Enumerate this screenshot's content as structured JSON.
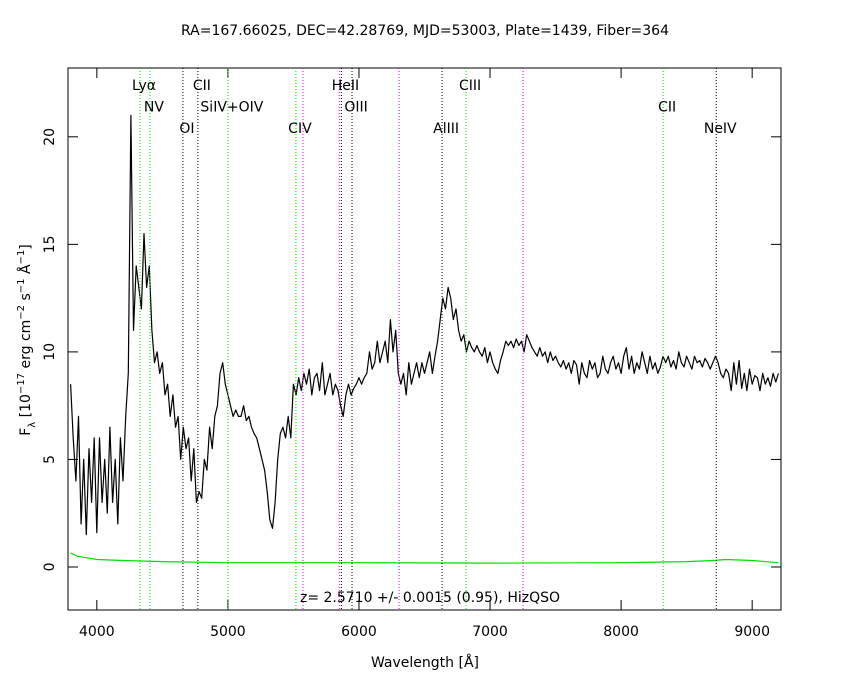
{
  "chart_data": {
    "type": "line",
    "title": "RA=167.66025, DEC=42.28769, MJD=53003, Plate=1439, Fiber=364",
    "xlabel": "Wavelength [Å]",
    "ylabel": [
      "F",
      "λ",
      " [10",
      "−17",
      " erg cm",
      "−2",
      " s",
      "−1",
      " Å",
      "−1",
      "]"
    ],
    "annotation": "z= 2.5710 +/- 0.0015 (0.95), HizQSO",
    "xlim": [
      3780,
      9220
    ],
    "ylim": [
      -2,
      23.2
    ],
    "xticks": [
      4000,
      5000,
      6000,
      7000,
      8000,
      9000
    ],
    "yticks": [
      0,
      5,
      10,
      15,
      20
    ],
    "series": [
      {
        "color": "#000000",
        "x": [
          3800,
          3820,
          3840,
          3860,
          3880,
          3900,
          3920,
          3940,
          3960,
          3980,
          4000,
          4020,
          4040,
          4060,
          4080,
          4100,
          4120,
          4140,
          4160,
          4180,
          4200,
          4220,
          4240,
          4260,
          4280,
          4300,
          4320,
          4340,
          4360,
          4380,
          4400,
          4420,
          4440,
          4460,
          4480,
          4500,
          4520,
          4540,
          4560,
          4580,
          4600,
          4620,
          4640,
          4660,
          4680,
          4700,
          4720,
          4740,
          4760,
          4780,
          4800,
          4820,
          4840,
          4860,
          4880,
          4900,
          4920,
          4940,
          4960,
          4980,
          5000,
          5020,
          5040,
          5060,
          5080,
          5100,
          5120,
          5140,
          5160,
          5180,
          5200,
          5220,
          5240,
          5260,
          5280,
          5300,
          5320,
          5340,
          5360,
          5380,
          5400,
          5420,
          5440,
          5460,
          5480,
          5500,
          5520,
          5540,
          5560,
          5580,
          5600,
          5620,
          5640,
          5660,
          5680,
          5700,
          5720,
          5740,
          5760,
          5780,
          5800,
          5820,
          5840,
          5860,
          5880,
          5900,
          5920,
          5940,
          5960,
          5980,
          6000,
          6020,
          6040,
          6060,
          6080,
          6100,
          6120,
          6140,
          6160,
          6180,
          6200,
          6220,
          6240,
          6260,
          6280,
          6300,
          6320,
          6340,
          6360,
          6380,
          6400,
          6420,
          6440,
          6460,
          6480,
          6500,
          6520,
          6540,
          6560,
          6580,
          6600,
          6620,
          6640,
          6660,
          6680,
          6700,
          6720,
          6740,
          6760,
          6780,
          6800,
          6820,
          6840,
          6860,
          6880,
          6900,
          6920,
          6940,
          6960,
          6980,
          7000,
          7020,
          7040,
          7060,
          7080,
          7100,
          7120,
          7140,
          7160,
          7180,
          7200,
          7220,
          7240,
          7260,
          7280,
          7300,
          7320,
          7340,
          7360,
          7380,
          7400,
          7420,
          7440,
          7460,
          7480,
          7500,
          7520,
          7540,
          7560,
          7580,
          7600,
          7620,
          7640,
          7660,
          7680,
          7700,
          7720,
          7740,
          7760,
          7780,
          7800,
          7820,
          7840,
          7860,
          7880,
          7900,
          7920,
          7940,
          7960,
          7980,
          8000,
          8020,
          8040,
          8060,
          8080,
          8100,
          8120,
          8140,
          8160,
          8180,
          8200,
          8220,
          8240,
          8260,
          8280,
          8300,
          8320,
          8340,
          8360,
          8380,
          8400,
          8420,
          8440,
          8460,
          8480,
          8500,
          8520,
          8540,
          8560,
          8580,
          8600,
          8620,
          8640,
          8660,
          8680,
          8700,
          8720,
          8740,
          8760,
          8780,
          8800,
          8820,
          8840,
          8860,
          8880,
          8900,
          8920,
          8940,
          8960,
          8980,
          9000,
          9020,
          9040,
          9060,
          9080,
          9100,
          9120,
          9140,
          9160,
          9180,
          9200
        ],
        "values": [
          8.5,
          6,
          4,
          7,
          2,
          5,
          1.5,
          5.5,
          3,
          6,
          1.6,
          6,
          3,
          5,
          2.5,
          6.5,
          3,
          5,
          2,
          6,
          4,
          7,
          9,
          21,
          11,
          14,
          13,
          12,
          15.5,
          13,
          14,
          11,
          9.5,
          10,
          9,
          9.5,
          8,
          8.5,
          7,
          8,
          6.5,
          7,
          5,
          6.5,
          5.5,
          6,
          4,
          5.5,
          3,
          3.5,
          3.2,
          5,
          4.5,
          6.5,
          5.5,
          7,
          7.5,
          9,
          9.5,
          8.5,
          8,
          7.5,
          7,
          7.3,
          7,
          7,
          7.5,
          6.8,
          7,
          6.5,
          6.2,
          6,
          5.5,
          5,
          4.5,
          3.5,
          2.2,
          1.8,
          3,
          5,
          6.2,
          6.5,
          6,
          7,
          6,
          8.5,
          8,
          8.8,
          8.2,
          9,
          8.5,
          9.2,
          8,
          8.8,
          9,
          8.2,
          9.5,
          8,
          8.5,
          9,
          8,
          8.5,
          8.2,
          7.5,
          7,
          8,
          8.5,
          8,
          8.3,
          8.5,
          8.8,
          8.5,
          8.8,
          9,
          10,
          9.2,
          9.5,
          10.5,
          9.5,
          10,
          10.5,
          9.5,
          11.5,
          10,
          11,
          9,
          8.5,
          9,
          8,
          9.5,
          8.5,
          9,
          9.5,
          8.8,
          9.5,
          9,
          9.5,
          10,
          9,
          9.8,
          10.5,
          11.5,
          12.5,
          12,
          13,
          12.5,
          11.5,
          12,
          11,
          10.5,
          10.8,
          10,
          10.5,
          10.2,
          10,
          10.3,
          10,
          9.8,
          10.2,
          9.5,
          10,
          9.5,
          9.2,
          9,
          9.6,
          10,
          10.5,
          10.3,
          10.5,
          10.2,
          10.6,
          10.3,
          10.5,
          10,
          10.8,
          10.5,
          10.2,
          10,
          9.8,
          10.2,
          9.8,
          10,
          9.5,
          10,
          9.6,
          9.8,
          9.5,
          9.3,
          9.6,
          9.2,
          9.5,
          9,
          9.6,
          9.4,
          8.5,
          9.5,
          9,
          8.8,
          9.6,
          9.2,
          9.5,
          8.8,
          9,
          9.8,
          9.2,
          9,
          9.5,
          9.8,
          9.2,
          9.5,
          9,
          9.8,
          10.2,
          9.2,
          9.8,
          9,
          9.5,
          9.2,
          10,
          9.5,
          9,
          9.8,
          9.2,
          9.5,
          9,
          9.3,
          9.8,
          9.5,
          9.8,
          9.3,
          9.6,
          9.2,
          10,
          9.5,
          9.3,
          9.8,
          9.5,
          9.2,
          9.8,
          9.5,
          9.6,
          9.3,
          9.7,
          9.5,
          9.2,
          9.5,
          9.8,
          9.5,
          9,
          8.8,
          9.2,
          9,
          8.2,
          9.5,
          8.5,
          9.6,
          8.3,
          9,
          8.2,
          9.2,
          8.5,
          8.9,
          8.8,
          8.2,
          9,
          8.5,
          8.8,
          8.4,
          9,
          8.6,
          9
        ]
      },
      {
        "color": "#00e000",
        "x": [
          3800,
          3850,
          3900,
          4000,
          4200,
          4500,
          5000,
          6000,
          7000,
          8000,
          8500,
          8700,
          8800,
          9000,
          9200
        ],
        "values": [
          0.65,
          0.5,
          0.45,
          0.35,
          0.3,
          0.25,
          0.2,
          0.2,
          0.18,
          0.2,
          0.25,
          0.3,
          0.35,
          0.3,
          0.2
        ]
      }
    ],
    "lines": [
      {
        "label": "Lyα",
        "wavelength": 4329,
        "color": "#00e000"
      },
      {
        "label": "NV",
        "wavelength": 4405,
        "color": "#00e000"
      },
      {
        "label": "OI",
        "wavelength": 4657,
        "color": "#000000"
      },
      {
        "label": "CII",
        "wavelength": 4771,
        "color": "#000000"
      },
      {
        "label": "SiIV+OIV",
        "wavelength": 5000,
        "color": "#00e000"
      },
      {
        "label": "CIV",
        "wavelength": 5519,
        "color": "#00e000"
      },
      {
        "wavelength": 5573,
        "color": "#e000e0"
      },
      {
        "wavelength": 5850,
        "color": "#e000e0"
      },
      {
        "label": "HeII",
        "wavelength": 5866,
        "color": "#000000"
      },
      {
        "label": "OIII",
        "wavelength": 5947,
        "color": "#000000"
      },
      {
        "wavelength": 6306,
        "color": "#e000e0"
      },
      {
        "label": "AlIII",
        "wavelength": 6634,
        "color": "#000000"
      },
      {
        "label": "CIII",
        "wavelength": 6817,
        "color": "#00e000"
      },
      {
        "wavelength": 7252,
        "color": "#e000e0"
      },
      {
        "label": "CII",
        "wavelength": 8321,
        "color": "#00e000"
      },
      {
        "label": "NeIV",
        "wavelength": 8726,
        "color": "#000000"
      }
    ]
  }
}
